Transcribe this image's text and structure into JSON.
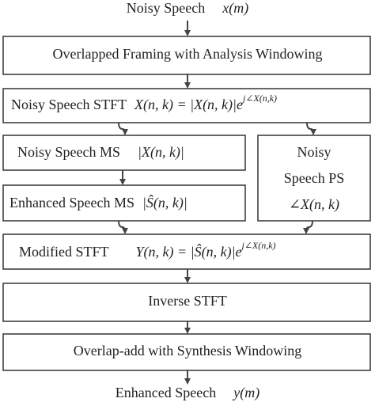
{
  "input": {
    "label": "Noisy Speech",
    "formula": "x(m)"
  },
  "nodes": [
    {
      "label": "Overlapped Framing with Analysis Windowing"
    },
    {
      "label": "Noisy Speech STFT",
      "formula": "X(n, k) = |X(n, k)|e",
      "formula_sup": "j∠X(n,k)"
    },
    {
      "label": "Noisy Speech MS",
      "formula": "|X(n, k)|"
    },
    {
      "label": "Enhanced Speech MS",
      "formula": "|Ŝ(n, k)|"
    },
    {
      "label_lines": [
        "Noisy",
        "Speech PS"
      ],
      "formula": "∠X(n, k)"
    },
    {
      "label": "Modified STFT",
      "formula": "Y(n, k) = |Ŝ(n, k)|e",
      "formula_sup": "j∠X(n,k)"
    },
    {
      "label": "Inverse STFT"
    },
    {
      "label": "Overlap-add with Synthesis Windowing"
    }
  ],
  "output": {
    "label": "Enhanced Speech",
    "formula": "y(m)"
  }
}
